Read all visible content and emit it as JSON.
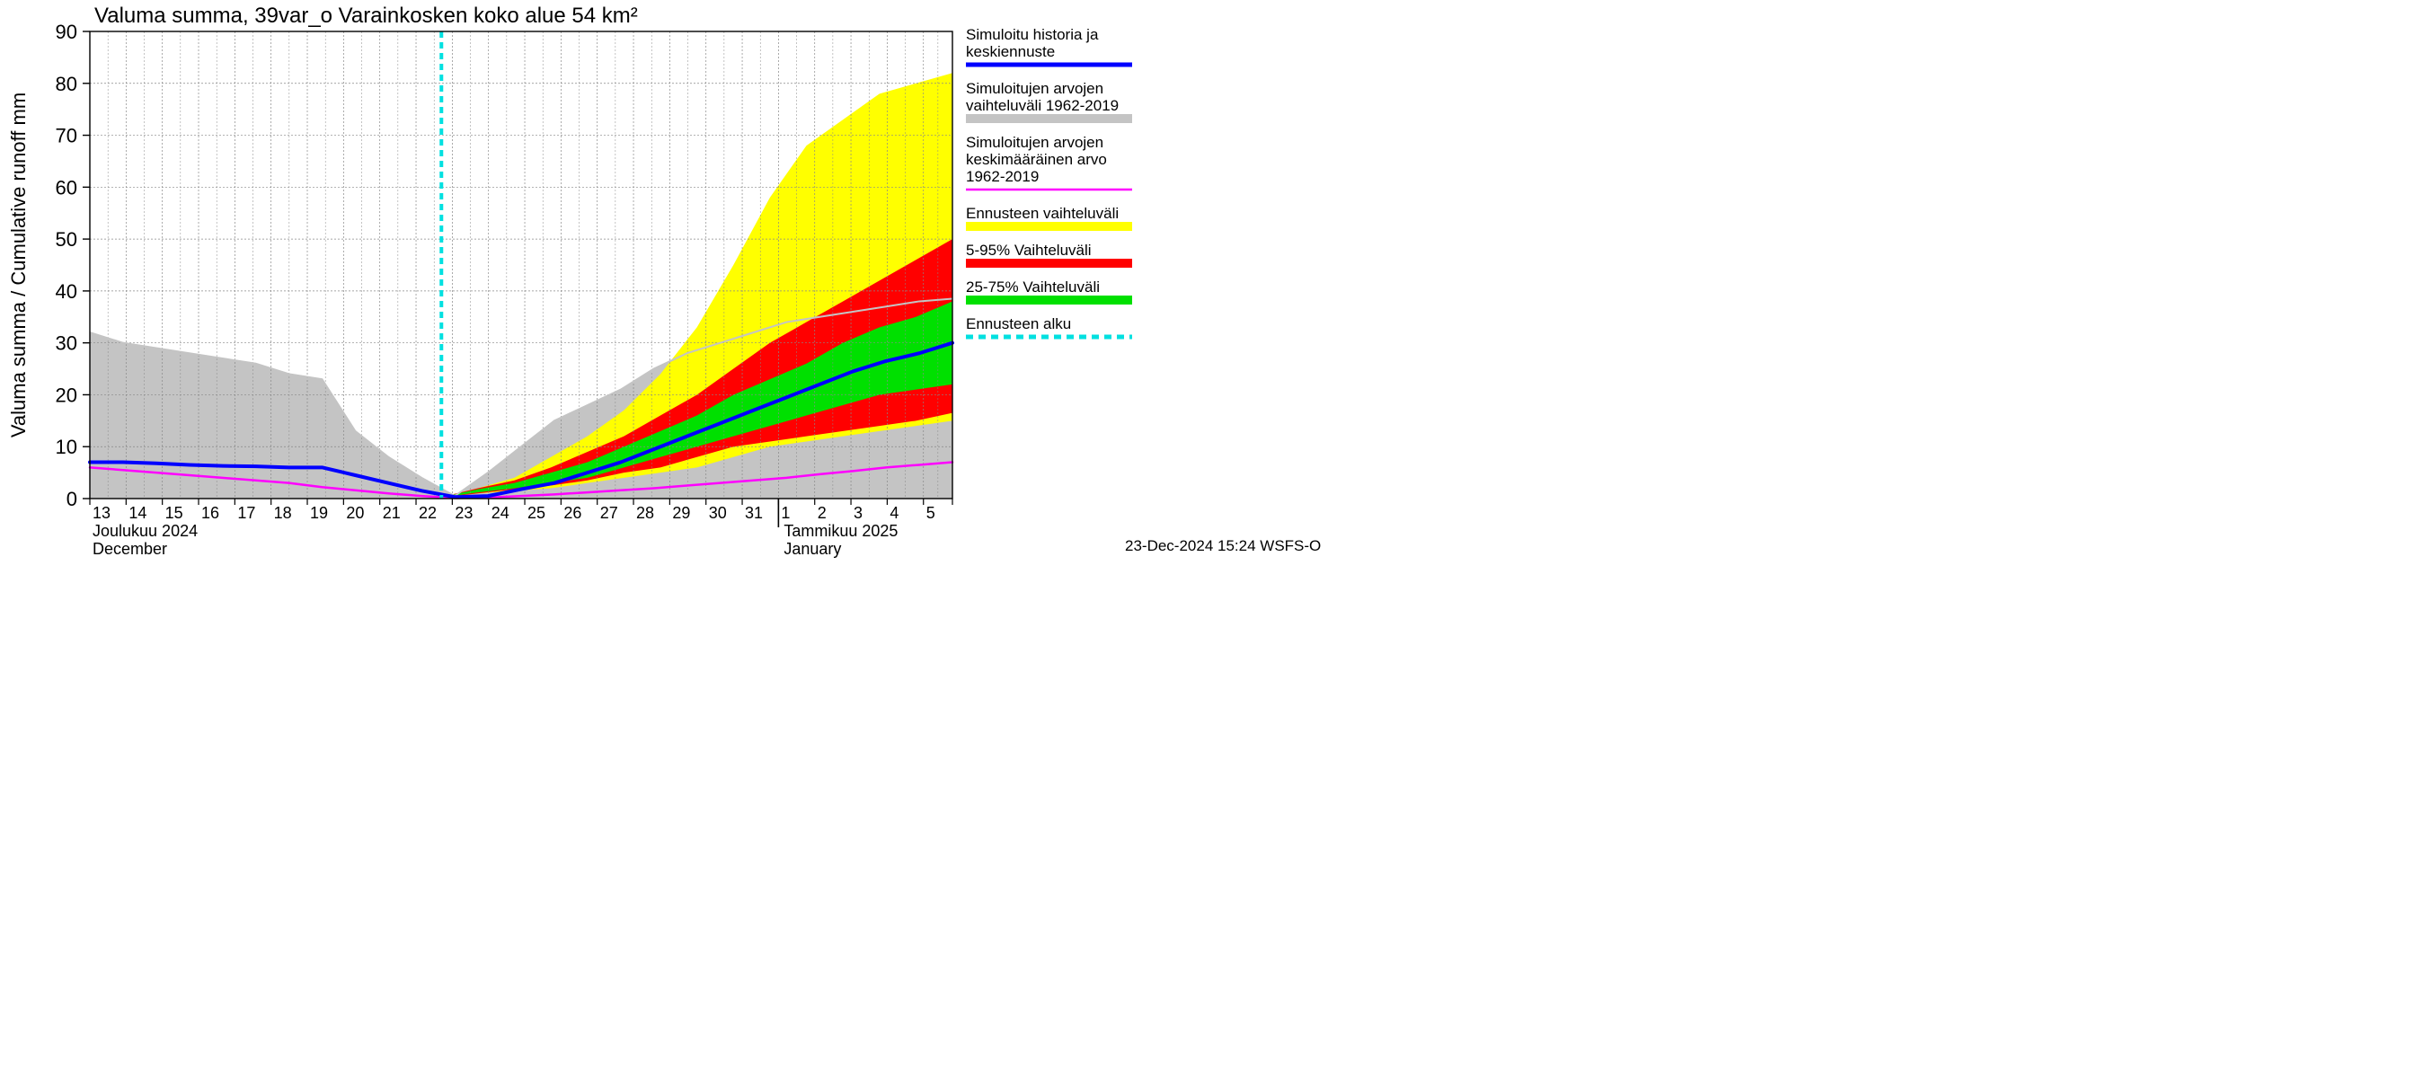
{
  "title": "Valuma summa, 39var_o Varainkosken koko alue 54 km²",
  "ylabel": "Valuma summa / Cumulative runoff    mm",
  "footer": "23-Dec-2024 15:24 WSFS-O",
  "xaxis_month_left_fi": "Joulukuu  2024",
  "xaxis_month_left_en": "December",
  "xaxis_month_right_fi": "Tammikuu  2025",
  "xaxis_month_right_en": "January",
  "chart": {
    "type": "area-line",
    "background_color": "#ffffff",
    "grid_color": "#888888",
    "grid_dash": "2 2",
    "title_fontsize": 24,
    "ylabel_fontsize": 22,
    "tick_fontsize": 22,
    "ylim": [
      0,
      90
    ],
    "ytick_step": 10,
    "x_days": [
      13,
      14,
      15,
      16,
      17,
      18,
      19,
      20,
      21,
      22,
      23,
      24,
      25,
      26,
      27,
      28,
      29,
      30,
      31,
      32,
      33,
      34,
      35,
      36,
      36.8
    ],
    "x_tick_labels": [
      "13",
      "14",
      "15",
      "16",
      "17",
      "18",
      "19",
      "20",
      "21",
      "22",
      "23",
      "24",
      "25",
      "26",
      "27",
      "28",
      "29",
      "30",
      "31",
      "1",
      "2",
      "3",
      "4",
      "5",
      ""
    ],
    "forecast_start_day": 22.7,
    "jan_start_day": 32,
    "series": {
      "hist_range": {
        "color": "#c4c4c4",
        "upper": [
          32,
          30,
          29,
          28,
          27,
          26,
          24,
          23,
          13,
          8,
          4,
          0.5,
          5,
          10,
          15,
          18,
          21,
          25,
          28,
          30,
          32,
          34,
          35,
          36,
          37,
          38,
          38.5
        ],
        "lower": [
          0,
          0,
          0,
          0,
          0,
          0,
          0,
          0,
          0,
          0,
          0,
          0,
          0,
          0,
          0,
          0,
          0,
          0,
          0,
          0,
          0,
          0,
          0,
          0,
          0,
          0,
          0
        ]
      },
      "forecast_range": {
        "color": "#ffff00",
        "upper": [
          0.3,
          2,
          4,
          8,
          12,
          17,
          24,
          33,
          45,
          58,
          68,
          73,
          78,
          80,
          82
        ],
        "lower": [
          0.2,
          1,
          1.5,
          2,
          3,
          4,
          5,
          6,
          8,
          10,
          11,
          12,
          13,
          14,
          15
        ]
      },
      "range_5_95": {
        "color": "#ff0000",
        "upper": [
          0.3,
          2,
          3.5,
          6,
          9,
          12,
          16,
          20,
          25,
          30,
          34,
          38,
          42,
          46,
          50
        ],
        "lower": [
          0.2,
          1,
          1.8,
          2.5,
          3.5,
          5,
          6,
          8,
          10,
          11,
          12,
          13,
          14,
          15,
          16.5
        ]
      },
      "range_25_75": {
        "color": "#00e000",
        "upper": [
          0.3,
          1.8,
          3,
          5,
          7,
          10,
          13,
          16,
          20,
          23,
          26,
          30,
          33,
          35,
          38
        ],
        "lower": [
          0.2,
          1.2,
          2,
          3,
          4,
          6,
          8,
          10,
          12,
          14,
          16,
          18,
          20,
          21,
          22
        ]
      },
      "hist_mean": {
        "color": "#ff00ff",
        "width": 2.5,
        "y": [
          6,
          5.5,
          5,
          4.5,
          4,
          3.5,
          3,
          2.2,
          1.6,
          1,
          0.5,
          0.1,
          0.2,
          0.5,
          0.8,
          1.2,
          1.6,
          2,
          2.5,
          3,
          3.5,
          4,
          4.7,
          5.3,
          6,
          6.5,
          7
        ]
      },
      "central": {
        "color": "#0000ff",
        "width": 4,
        "y": [
          7,
          7,
          6.8,
          6.5,
          6.3,
          6.2,
          6,
          6,
          4.5,
          3,
          1.5,
          0.3,
          0.5,
          1.8,
          3,
          5,
          7,
          9.5,
          12,
          14.5,
          17,
          19.5,
          22,
          24.5,
          26.5,
          28,
          30
        ]
      },
      "forecast_start_line": {
        "color": "#00e0e0",
        "width": 4,
        "dash": "7 5"
      }
    }
  },
  "legend": {
    "items": [
      {
        "type": "line",
        "color": "#0000ff",
        "width": 5,
        "lines": [
          "Simuloitu historia ja",
          "keskiennuste"
        ]
      },
      {
        "type": "band",
        "color": "#c4c4c4",
        "lines": [
          "Simuloitujen arvojen",
          "vaihteluväli 1962-2019"
        ]
      },
      {
        "type": "line",
        "color": "#ff00ff",
        "width": 2.5,
        "lines": [
          "Simuloitujen arvojen",
          "keskimääräinen arvo",
          "  1962-2019"
        ]
      },
      {
        "type": "band",
        "color": "#ffff00",
        "lines": [
          "Ennusteen vaihteluväli"
        ]
      },
      {
        "type": "band",
        "color": "#ff0000",
        "lines": [
          "5-95% Vaihteluväli"
        ]
      },
      {
        "type": "band",
        "color": "#00e000",
        "lines": [
          "25-75% Vaihteluväli"
        ]
      },
      {
        "type": "dash",
        "color": "#00e0e0",
        "width": 5,
        "lines": [
          "Ennusteen alku"
        ]
      }
    ]
  }
}
